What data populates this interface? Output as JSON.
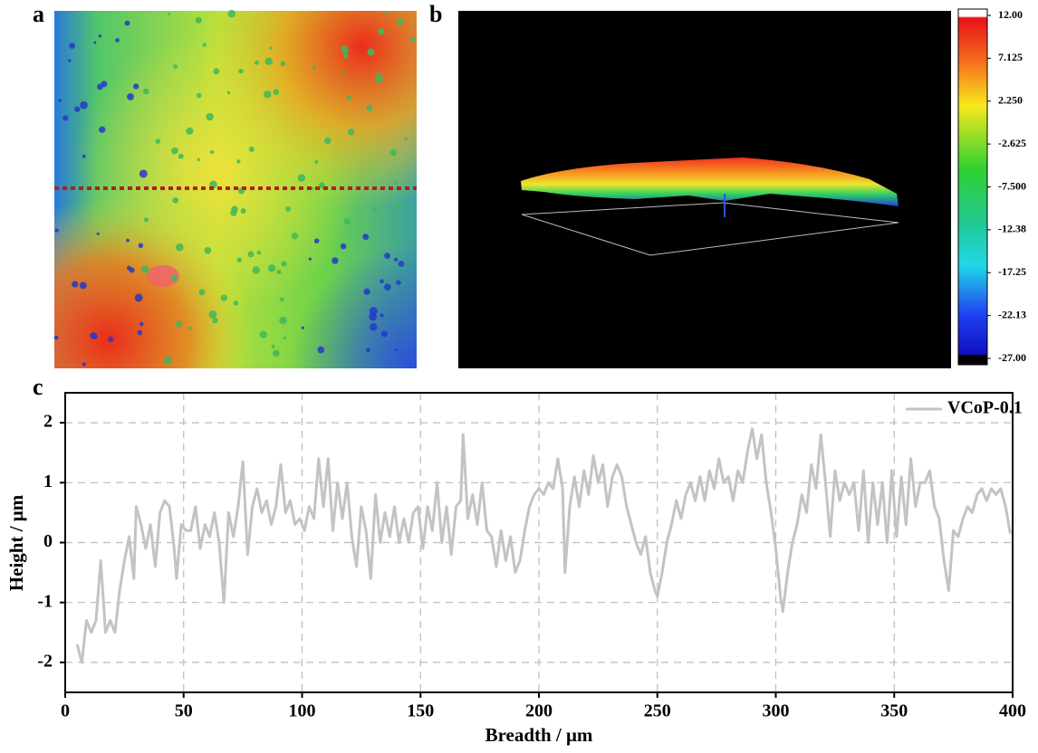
{
  "panel_labels": [
    "a",
    "b",
    "c"
  ],
  "colorbar": {
    "lim": [
      -27,
      12
    ],
    "ticks": [
      {
        "value": 12,
        "label": "12.00"
      },
      {
        "value": 7.125,
        "label": "7.125"
      },
      {
        "value": 2.25,
        "label": "2.250"
      },
      {
        "value": -2.625,
        "label": "-2.625"
      },
      {
        "value": -7.5,
        "label": "-7.500"
      },
      {
        "value": -12.375,
        "label": "-12.38"
      },
      {
        "value": -17.25,
        "label": "-17.25"
      },
      {
        "value": -22.125,
        "label": "-22.13"
      },
      {
        "value": -27,
        "label": "-27.00"
      }
    ]
  },
  "chart_data": {
    "type": "line",
    "x_label": "Breadth / μm",
    "y_label": "Height / μm",
    "xlim": [
      0,
      400
    ],
    "xticks": [
      0,
      50,
      100,
      150,
      200,
      250,
      300,
      350,
      400
    ],
    "ylim": [
      -2.5,
      2.5
    ],
    "yticks": [
      -2,
      -1,
      0,
      1,
      2
    ],
    "grid": true,
    "legend": "top-right",
    "x": [
      5,
      7,
      9,
      11,
      13,
      15,
      17,
      19,
      21,
      23,
      25,
      27,
      29,
      30,
      32,
      34,
      36,
      38,
      40,
      42,
      44,
      46,
      47,
      49,
      51,
      53,
      55,
      57,
      59,
      61,
      63,
      65,
      67,
      69,
      71,
      73,
      75,
      77,
      79,
      81,
      83,
      85,
      87,
      89,
      91,
      93,
      95,
      97,
      99,
      101,
      103,
      105,
      107,
      109,
      111,
      113,
      115,
      117,
      119,
      121,
      123,
      125,
      127,
      129,
      131,
      133,
      135,
      137,
      139,
      141,
      143,
      145,
      147,
      149,
      151,
      153,
      155,
      157,
      159,
      161,
      163,
      165,
      167,
      168,
      170,
      172,
      174,
      176,
      178,
      180,
      182,
      184,
      186,
      188,
      190,
      192,
      194,
      196,
      198,
      200,
      202,
      204,
      206,
      208,
      210,
      211,
      213,
      215,
      217,
      219,
      221,
      223,
      225,
      227,
      229,
      231,
      233,
      235,
      237,
      239,
      241,
      243,
      245,
      247,
      249,
      250,
      252,
      254,
      256,
      258,
      260,
      262,
      264,
      266,
      268,
      270,
      272,
      274,
      276,
      278,
      280,
      282,
      284,
      286,
      288,
      290,
      292,
      294,
      296,
      298,
      300,
      302,
      303,
      305,
      307,
      309,
      311,
      313,
      315,
      317,
      319,
      321,
      323,
      325,
      327,
      329,
      331,
      333,
      335,
      337,
      339,
      341,
      343,
      345,
      347,
      349,
      351,
      353,
      355,
      357,
      359,
      361,
      363,
      365,
      367,
      369,
      371,
      373,
      375,
      377,
      379,
      381,
      383,
      385,
      387,
      389,
      391,
      393,
      395,
      397,
      399
    ],
    "series": [
      {
        "name": "VCoP-0.1",
        "color": "#c3c3c3",
        "values": [
          -1.7,
          -2.0,
          -1.3,
          -1.5,
          -1.3,
          -0.3,
          -1.5,
          -1.3,
          -1.5,
          -0.8,
          -0.3,
          0.1,
          -0.6,
          0.6,
          0.3,
          -0.1,
          0.3,
          -0.4,
          0.5,
          0.7,
          0.6,
          -0.1,
          -0.6,
          0.3,
          0.2,
          0.2,
          0.6,
          -0.1,
          0.3,
          0.1,
          0.5,
          0.0,
          -1.0,
          0.5,
          0.1,
          0.6,
          1.35,
          -0.2,
          0.6,
          0.9,
          0.5,
          0.7,
          0.3,
          0.6,
          1.3,
          0.5,
          0.7,
          0.3,
          0.4,
          0.2,
          0.6,
          0.4,
          1.4,
          0.6,
          1.4,
          0.2,
          1.0,
          0.4,
          1.0,
          0.1,
          -0.4,
          0.6,
          0.2,
          -0.6,
          0.8,
          0.0,
          0.5,
          0.1,
          0.6,
          0.0,
          0.4,
          0.0,
          0.5,
          0.6,
          -0.1,
          0.6,
          0.2,
          1.0,
          0.0,
          0.6,
          -0.2,
          0.6,
          0.7,
          1.8,
          0.4,
          0.8,
          0.3,
          1.0,
          0.2,
          0.1,
          -0.4,
          0.2,
          -0.3,
          0.1,
          -0.5,
          -0.3,
          0.2,
          0.6,
          0.8,
          0.9,
          0.8,
          1.0,
          0.9,
          1.4,
          0.9,
          -0.5,
          0.6,
          1.1,
          0.6,
          1.2,
          0.8,
          1.45,
          1.0,
          1.3,
          0.6,
          1.1,
          1.3,
          1.1,
          0.6,
          0.3,
          0.0,
          -0.2,
          0.1,
          -0.5,
          -0.8,
          -0.9,
          -0.5,
          0.0,
          0.3,
          0.7,
          0.4,
          0.8,
          1.0,
          0.7,
          1.1,
          0.7,
          1.2,
          0.9,
          1.4,
          1.0,
          1.1,
          0.7,
          1.2,
          1.0,
          1.5,
          1.9,
          1.4,
          1.8,
          1.0,
          0.5,
          -0.1,
          -0.9,
          -1.15,
          -0.5,
          0.0,
          0.3,
          0.8,
          0.5,
          1.3,
          0.9,
          1.8,
          1.0,
          0.1,
          1.2,
          0.7,
          1.0,
          0.8,
          1.0,
          0.2,
          1.2,
          0.0,
          1.0,
          0.3,
          1.0,
          0.0,
          1.2,
          0.1,
          1.1,
          0.3,
          1.4,
          0.6,
          1.0,
          1.0,
          1.2,
          0.6,
          0.4,
          -0.3,
          -0.8,
          0.2,
          0.1,
          0.4,
          0.6,
          0.5,
          0.8,
          0.9,
          0.7,
          0.9,
          0.8,
          0.9,
          0.6,
          0.15
        ]
      }
    ]
  }
}
